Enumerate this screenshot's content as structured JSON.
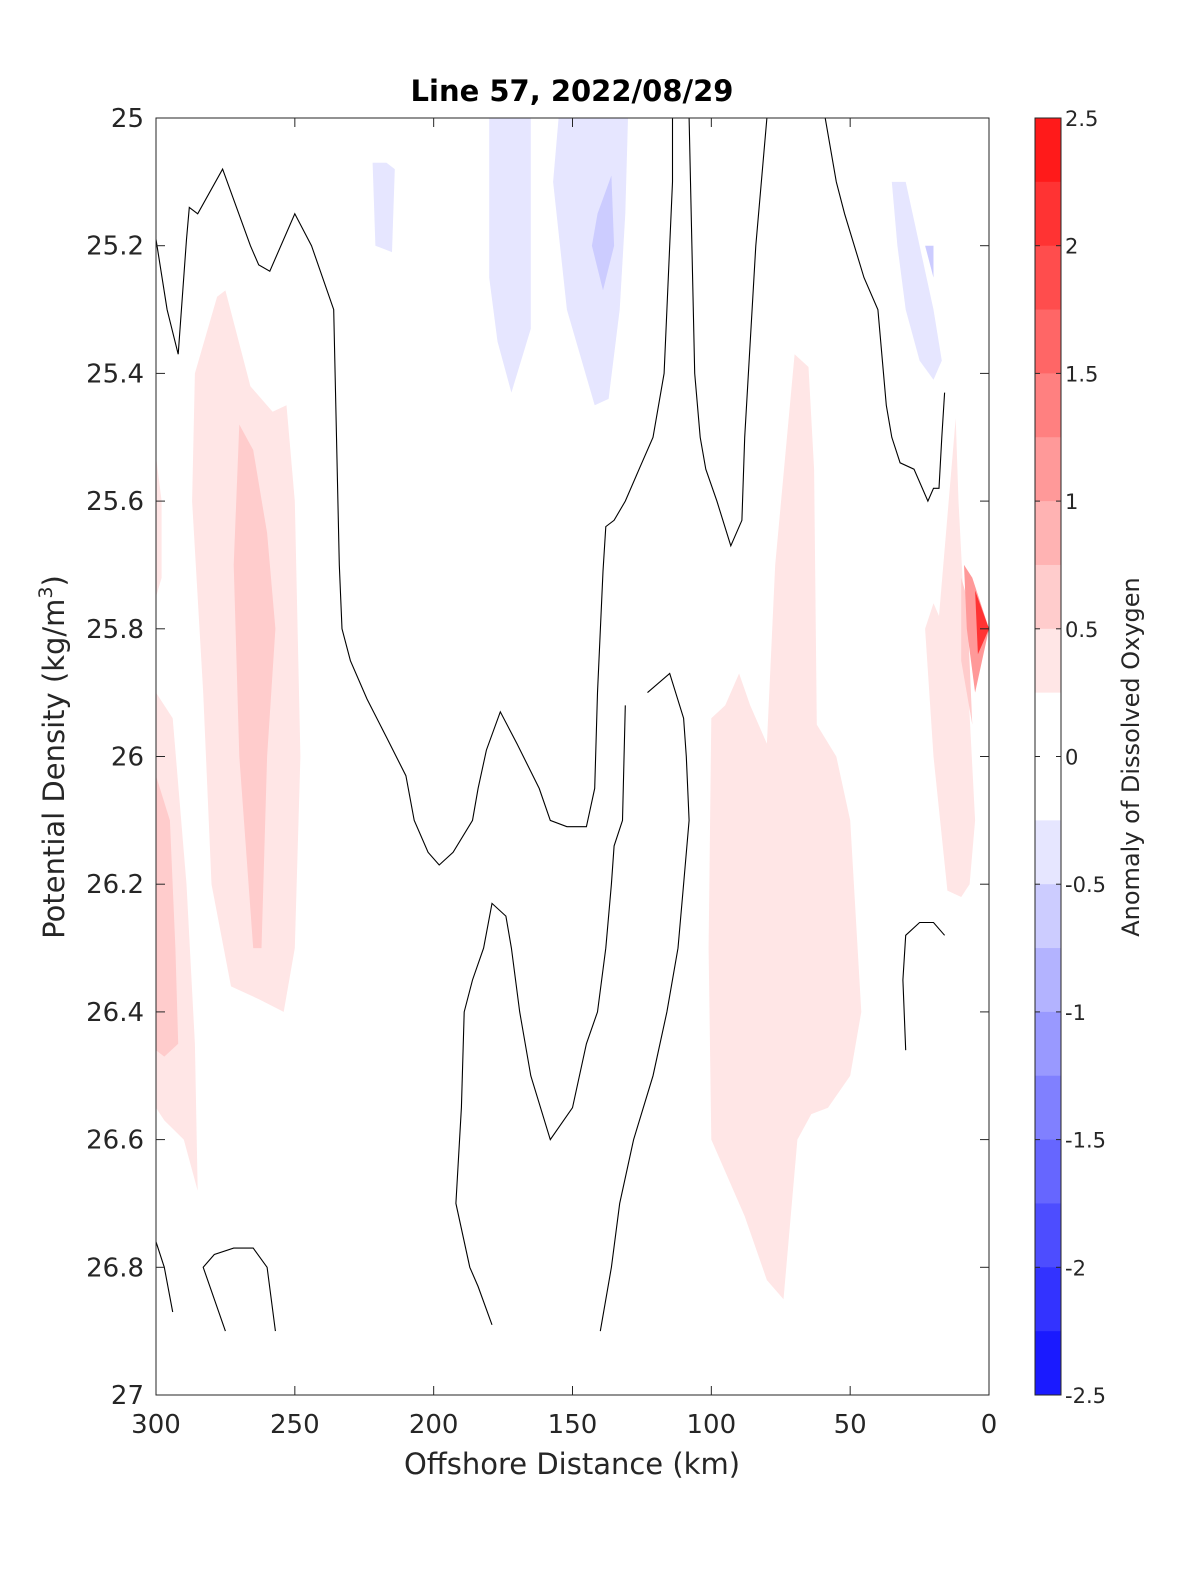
{
  "chart_data": {
    "type": "filled-contour",
    "title": "Line 57, 2022/08/29",
    "xlabel": "Offshore Distance (km)",
    "ylabel_main": "Potential Density (kg/m",
    "ylabel_sup": "3",
    "ylabel_tail": ")",
    "colorbar_label": "Anomaly of Dissolved Oxygen",
    "xlim": [
      300,
      0
    ],
    "x_reversed": true,
    "ylim": [
      25,
      27
    ],
    "y_reversed": true,
    "x_ticks": [
      300,
      250,
      200,
      150,
      100,
      50,
      0
    ],
    "y_ticks": [
      25,
      25.2,
      25.4,
      25.6,
      25.8,
      26,
      26.2,
      26.4,
      26.6,
      26.8,
      27
    ],
    "y_tick_labels": [
      "25",
      "25.2",
      "25.4",
      "25.6",
      "25.8",
      "26",
      "26.2",
      "26.4",
      "26.6",
      "26.8",
      "27"
    ],
    "colorbar_range": [
      -2.5,
      2.5
    ],
    "colorbar_step": 0.25,
    "colorbar_ticks": [
      2.5,
      2,
      1.5,
      1,
      0.5,
      0,
      -0.5,
      -1,
      -1.5,
      -2,
      -2.5
    ],
    "colorbar_tick_labels": [
      "2.5",
      "2",
      "1.5",
      "1",
      "0.5",
      "0",
      "-0.5",
      "-1",
      "-1.5",
      "-2",
      "-2.5"
    ],
    "colors": {
      "positive": "#ff0000",
      "negative": "#0000ff",
      "zero": "#ffffff",
      "contour_line": "#000000"
    },
    "regions": [
      {
        "level": 0.25,
        "points": [
          [
            300,
            25.53
          ],
          [
            298,
            25.6
          ],
          [
            298,
            25.72
          ],
          [
            300,
            25.75
          ]
        ]
      },
      {
        "level": 0.25,
        "points": [
          [
            300,
            25.9
          ],
          [
            294,
            25.94
          ],
          [
            289,
            26.2
          ],
          [
            286,
            26.45
          ],
          [
            285,
            26.68
          ],
          [
            290,
            26.6
          ],
          [
            297,
            26.57
          ],
          [
            300,
            26.55
          ]
        ]
      },
      {
        "level": 0.25,
        "points": [
          [
            278,
            25.28
          ],
          [
            275,
            25.27
          ],
          [
            266,
            25.42
          ],
          [
            258,
            25.46
          ],
          [
            253,
            25.45
          ],
          [
            250,
            25.6
          ],
          [
            248,
            26.0
          ],
          [
            250,
            26.3
          ],
          [
            254,
            26.4
          ],
          [
            263,
            26.38
          ],
          [
            273,
            26.36
          ],
          [
            280,
            26.2
          ],
          [
            283,
            25.9
          ],
          [
            287,
            25.6
          ],
          [
            286,
            25.4
          ]
        ]
      },
      {
        "level": 0.25,
        "points": [
          [
            70,
            25.37
          ],
          [
            65,
            25.39
          ],
          [
            63,
            25.55
          ],
          [
            62,
            25.95
          ],
          [
            55,
            26.0
          ],
          [
            50,
            26.1
          ],
          [
            46,
            26.4
          ],
          [
            50,
            26.5
          ],
          [
            58,
            26.55
          ],
          [
            64,
            26.56
          ],
          [
            69,
            26.6
          ],
          [
            74,
            26.85
          ],
          [
            80,
            26.82
          ],
          [
            88,
            26.72
          ],
          [
            100,
            26.6
          ],
          [
            101,
            26.3
          ],
          [
            100,
            25.94
          ],
          [
            95,
            25.92
          ],
          [
            90,
            25.87
          ],
          [
            86,
            25.92
          ],
          [
            80,
            25.98
          ],
          [
            77,
            25.7
          ]
        ]
      },
      {
        "level": 0.25,
        "points": [
          [
            12,
            25.47
          ],
          [
            11,
            25.6
          ],
          [
            5,
            26.1
          ],
          [
            7,
            26.2
          ],
          [
            10,
            26.22
          ],
          [
            15,
            26.21
          ],
          [
            20,
            26.0
          ],
          [
            23,
            25.8
          ],
          [
            20,
            25.76
          ],
          [
            18,
            25.78
          ]
        ]
      },
      {
        "level": 0.5,
        "points": [
          [
            300,
            26.03
          ],
          [
            295,
            26.1
          ],
          [
            293,
            26.3
          ],
          [
            292,
            26.45
          ],
          [
            297,
            26.47
          ],
          [
            300,
            26.46
          ]
        ]
      },
      {
        "level": 0.5,
        "points": [
          [
            270,
            25.48
          ],
          [
            265,
            25.52
          ],
          [
            260,
            25.65
          ],
          [
            257,
            25.8
          ],
          [
            260,
            26.0
          ],
          [
            262,
            26.3
          ],
          [
            265,
            26.3
          ],
          [
            270,
            26.0
          ],
          [
            272,
            25.7
          ]
        ]
      },
      {
        "level": 0.5,
        "points": [
          [
            10,
            25.72
          ],
          [
            8,
            25.75
          ],
          [
            6,
            25.95
          ],
          [
            10,
            25.85
          ]
        ]
      },
      {
        "level": 1.0,
        "points": [
          [
            9,
            25.7
          ],
          [
            6,
            25.72
          ],
          [
            0,
            25.8
          ],
          [
            5,
            25.9
          ],
          [
            8,
            25.8
          ]
        ]
      },
      {
        "level": 2.0,
        "points": [
          [
            5,
            25.74
          ],
          [
            0,
            25.8
          ],
          [
            4,
            25.84
          ]
        ]
      },
      {
        "level": -0.25,
        "points": [
          [
            217,
            25.07
          ],
          [
            222,
            25.07
          ],
          [
            221,
            25.2
          ],
          [
            215,
            25.21
          ],
          [
            214,
            25.08
          ]
        ]
      },
      {
        "level": -0.25,
        "points": [
          [
            175,
            25.0
          ],
          [
            180,
            25.0
          ],
          [
            180,
            25.1
          ],
          [
            180,
            25.25
          ],
          [
            177,
            25.35
          ],
          [
            172,
            25.43
          ],
          [
            165,
            25.33
          ],
          [
            165,
            25.0
          ]
        ]
      },
      {
        "level": -0.25,
        "points": [
          [
            155,
            25.0
          ],
          [
            130,
            25.0
          ],
          [
            131,
            25.15
          ],
          [
            133,
            25.3
          ],
          [
            137,
            25.44
          ],
          [
            142,
            25.45
          ],
          [
            152,
            25.3
          ],
          [
            157,
            25.1
          ]
        ]
      },
      {
        "level": -0.25,
        "points": [
          [
            35,
            25.1
          ],
          [
            30,
            25.1
          ],
          [
            25,
            25.2
          ],
          [
            20,
            25.3
          ],
          [
            17,
            25.38
          ],
          [
            20,
            25.41
          ],
          [
            25,
            25.38
          ],
          [
            30,
            25.3
          ],
          [
            33,
            25.2
          ]
        ]
      },
      {
        "level": -0.5,
        "points": [
          [
            136,
            25.09
          ],
          [
            141,
            25.15
          ],
          [
            143,
            25.2
          ],
          [
            139,
            25.27
          ],
          [
            135,
            25.2
          ]
        ]
      },
      {
        "level": -0.5,
        "points": [
          [
            23,
            25.2
          ],
          [
            20,
            25.2
          ],
          [
            20,
            25.25
          ]
        ]
      }
    ],
    "contour_lines": [
      [
        [
          300,
          25.19
        ],
        [
          296,
          25.3
        ],
        [
          292,
          25.37
        ],
        [
          289,
          25.19
        ],
        [
          288,
          25.14
        ],
        [
          285,
          25.15
        ],
        [
          276,
          25.08
        ],
        [
          266,
          25.2
        ],
        [
          263,
          25.23
        ],
        [
          259,
          25.24
        ],
        [
          250,
          25.15
        ],
        [
          244,
          25.2
        ],
        [
          236,
          25.3
        ],
        [
          235,
          25.5
        ],
        [
          234,
          25.7
        ],
        [
          233,
          25.8
        ],
        [
          230,
          25.85
        ],
        [
          224,
          25.91
        ],
        [
          217,
          25.97
        ],
        [
          210,
          26.03
        ],
        [
          207,
          26.1
        ],
        [
          202,
          26.15
        ],
        [
          198,
          26.17
        ],
        [
          193,
          26.15
        ],
        [
          186,
          26.1
        ],
        [
          184,
          26.05
        ],
        [
          181,
          25.99
        ],
        [
          176,
          25.93
        ],
        [
          170,
          25.98
        ],
        [
          162,
          26.05
        ],
        [
          158,
          26.1
        ],
        [
          152,
          26.11
        ],
        [
          145,
          26.11
        ],
        [
          142,
          26.05
        ],
        [
          141,
          25.9
        ],
        [
          139,
          25.71
        ],
        [
          138,
          25.64
        ],
        [
          135,
          25.63
        ],
        [
          131,
          25.6
        ],
        [
          126,
          25.55
        ],
        [
          121,
          25.5
        ],
        [
          117,
          25.4
        ],
        [
          116,
          25.3
        ],
        [
          114,
          25.1
        ],
        [
          114,
          25.0
        ]
      ],
      [
        [
          108,
          25.0
        ],
        [
          107,
          25.2
        ],
        [
          106,
          25.4
        ],
        [
          104,
          25.5
        ],
        [
          102,
          25.55
        ],
        [
          98,
          25.6
        ],
        [
          93,
          25.67
        ],
        [
          89,
          25.63
        ],
        [
          88,
          25.5
        ],
        [
          84,
          25.2
        ],
        [
          80,
          25.0
        ]
      ],
      [
        [
          59,
          25.0
        ],
        [
          55,
          25.1
        ],
        [
          52,
          25.15
        ],
        [
          45,
          25.25
        ],
        [
          40,
          25.3
        ],
        [
          37,
          25.45
        ],
        [
          35,
          25.5
        ],
        [
          32,
          25.54
        ],
        [
          27,
          25.55
        ],
        [
          22,
          25.6
        ],
        [
          20,
          25.58
        ],
        [
          18,
          25.58
        ],
        [
          17,
          25.5
        ],
        [
          16,
          25.43
        ]
      ],
      [
        [
          123,
          25.9
        ],
        [
          115,
          25.87
        ],
        [
          110,
          25.94
        ],
        [
          109,
          26.0
        ],
        [
          108,
          26.1
        ],
        [
          110,
          26.2
        ],
        [
          112,
          26.3
        ],
        [
          116,
          26.4
        ],
        [
          121,
          26.5
        ],
        [
          128,
          26.6
        ],
        [
          133,
          26.7
        ],
        [
          136,
          26.8
        ],
        [
          140,
          26.9
        ]
      ],
      [
        [
          131,
          25.92
        ],
        [
          132,
          26.1
        ],
        [
          135,
          26.14
        ],
        [
          136,
          26.2
        ],
        [
          138,
          26.3
        ],
        [
          141,
          26.4
        ],
        [
          145,
          26.45
        ],
        [
          150,
          26.55
        ],
        [
          158,
          26.6
        ],
        [
          165,
          26.5
        ],
        [
          169,
          26.4
        ],
        [
          172,
          26.3
        ],
        [
          174,
          26.25
        ],
        [
          179,
          26.23
        ],
        [
          182,
          26.3
        ],
        [
          186,
          26.35
        ],
        [
          189,
          26.4
        ],
        [
          190,
          26.55
        ],
        [
          192,
          26.7
        ],
        [
          187,
          26.8
        ],
        [
          184,
          26.83
        ],
        [
          179,
          26.89
        ]
      ],
      [
        [
          300,
          26.76
        ],
        [
          297,
          26.8
        ],
        [
          294,
          26.87
        ]
      ],
      [
        [
          275,
          26.9
        ],
        [
          279,
          26.85
        ],
        [
          283,
          26.8
        ],
        [
          279,
          26.78
        ],
        [
          272,
          26.77
        ],
        [
          265,
          26.77
        ],
        [
          260,
          26.8
        ],
        [
          257,
          26.9
        ]
      ],
      [
        [
          16,
          26.28
        ],
        [
          20,
          26.26
        ],
        [
          25,
          26.26
        ],
        [
          30,
          26.28
        ],
        [
          31,
          26.35
        ],
        [
          30,
          26.46
        ]
      ]
    ]
  }
}
